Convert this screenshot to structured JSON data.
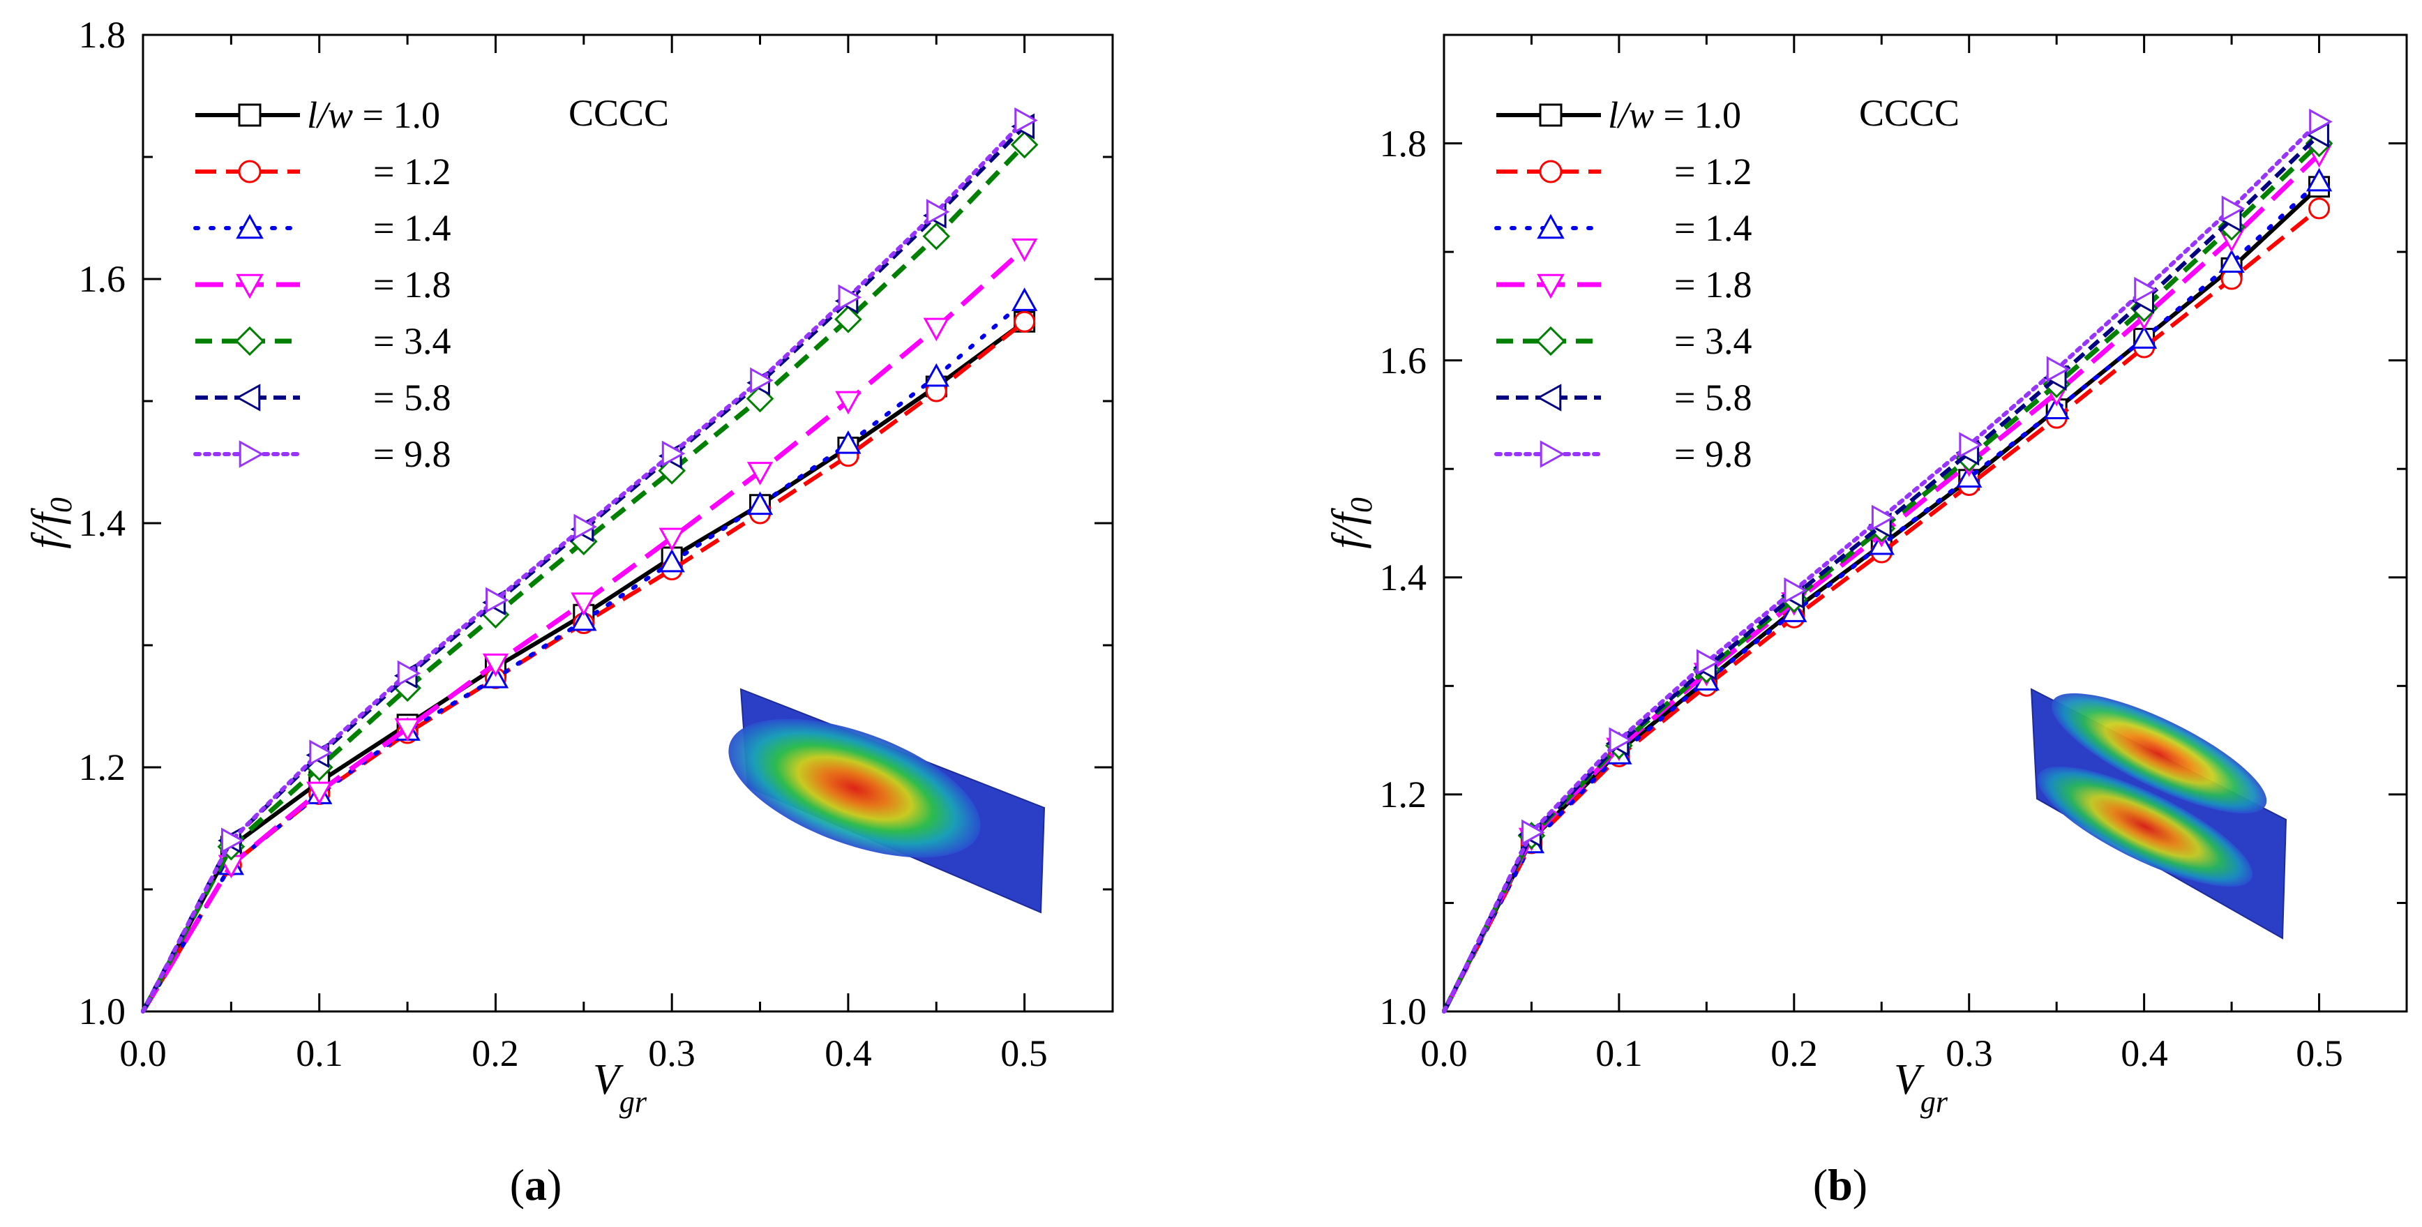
{
  "chart_data": [
    {
      "type": "line",
      "panel": "(a)",
      "panel_letter": "a",
      "annotation": "CCCC",
      "xlabel": "V",
      "xlabel_sub": "gr",
      "ylabel": "f/f",
      "ylabel_sub": "0",
      "xlim": [
        0,
        0.55
      ],
      "ylim": [
        1.0,
        1.8
      ],
      "xticks": [
        "0.0",
        "0.1",
        "0.2",
        "0.3",
        "0.4",
        "0.5"
      ],
      "yticks": [
        "1.0",
        "1.2",
        "1.4",
        "1.6",
        "1.8"
      ],
      "legend_var": "l/w",
      "x": [
        0,
        0.05,
        0.1,
        0.15,
        0.2,
        0.25,
        0.3,
        0.35,
        0.4,
        0.45,
        0.5
      ],
      "series": [
        {
          "name": "= 1.0",
          "color": "#000000",
          "marker": "square",
          "values": [
            1.0,
            1.135,
            1.188,
            1.235,
            1.282,
            1.325,
            1.372,
            1.415,
            1.462,
            1.512,
            1.565
          ]
        },
        {
          "name": "= 1.2",
          "color": "#ff0000",
          "marker": "circle",
          "values": [
            1.0,
            1.12,
            1.178,
            1.228,
            1.273,
            1.318,
            1.362,
            1.408,
            1.455,
            1.508,
            1.565
          ]
        },
        {
          "name": "= 1.4",
          "color": "#0000ee",
          "marker": "triangle-up",
          "values": [
            1.0,
            1.12,
            1.178,
            1.23,
            1.273,
            1.32,
            1.368,
            1.415,
            1.465,
            1.52,
            1.582
          ]
        },
        {
          "name": "= 1.8",
          "color": "#ff00ff",
          "marker": "triangle-down",
          "values": [
            1.0,
            1.12,
            1.18,
            1.232,
            1.285,
            1.335,
            1.388,
            1.442,
            1.5,
            1.56,
            1.625
          ]
        },
        {
          "name": "= 3.4",
          "color": "#008000",
          "marker": "diamond",
          "values": [
            1.0,
            1.135,
            1.2,
            1.265,
            1.325,
            1.385,
            1.443,
            1.502,
            1.567,
            1.635,
            1.71
          ]
        },
        {
          "name": "= 5.8",
          "color": "#000080",
          "marker": "triangle-left",
          "values": [
            1.0,
            1.14,
            1.21,
            1.275,
            1.335,
            1.395,
            1.455,
            1.515,
            1.582,
            1.652,
            1.725
          ]
        },
        {
          "name": "= 9.8",
          "color": "#9933ff",
          "marker": "triangle-right",
          "values": [
            1.0,
            1.14,
            1.212,
            1.277,
            1.337,
            1.397,
            1.457,
            1.517,
            1.585,
            1.655,
            1.73
          ]
        }
      ]
    },
    {
      "type": "line",
      "panel": "(b)",
      "panel_letter": "b",
      "annotation": "CCCC",
      "xlabel": "V",
      "xlabel_sub": "gr",
      "ylabel": "f/f",
      "ylabel_sub": "0",
      "xlim": [
        0,
        0.55
      ],
      "ylim": [
        1.0,
        1.9
      ],
      "xticks": [
        "0.0",
        "0.1",
        "0.2",
        "0.3",
        "0.4",
        "0.5"
      ],
      "yticks": [
        "1.0",
        "1.2",
        "1.4",
        "1.6",
        "1.8"
      ],
      "legend_var": "l/w",
      "x": [
        0,
        0.05,
        0.1,
        0.15,
        0.2,
        0.25,
        0.3,
        0.35,
        0.4,
        0.45,
        0.5
      ],
      "series": [
        {
          "name": "= 1.0",
          "color": "#000000",
          "marker": "square",
          "values": [
            1.0,
            1.158,
            1.24,
            1.305,
            1.37,
            1.43,
            1.49,
            1.555,
            1.62,
            1.685,
            1.76
          ]
        },
        {
          "name": "= 1.2",
          "color": "#ff0000",
          "marker": "circle",
          "values": [
            1.0,
            1.155,
            1.235,
            1.3,
            1.363,
            1.423,
            1.485,
            1.547,
            1.612,
            1.675,
            1.74
          ]
        },
        {
          "name": "= 1.4",
          "color": "#0000ee",
          "marker": "triangle-up",
          "values": [
            1.0,
            1.155,
            1.237,
            1.305,
            1.368,
            1.43,
            1.492,
            1.555,
            1.62,
            1.69,
            1.765
          ]
        },
        {
          "name": "= 1.8",
          "color": "#ff00ff",
          "marker": "triangle-down",
          "values": [
            1.0,
            1.16,
            1.243,
            1.312,
            1.377,
            1.44,
            1.505,
            1.57,
            1.64,
            1.712,
            1.79
          ]
        },
        {
          "name": "= 3.4",
          "color": "#008000",
          "marker": "diamond",
          "values": [
            1.0,
            1.162,
            1.245,
            1.315,
            1.38,
            1.445,
            1.51,
            1.578,
            1.648,
            1.723,
            1.8
          ]
        },
        {
          "name": "= 5.8",
          "color": "#000080",
          "marker": "triangle-left",
          "values": [
            1.0,
            1.163,
            1.247,
            1.317,
            1.383,
            1.448,
            1.515,
            1.584,
            1.655,
            1.73,
            1.808
          ]
        },
        {
          "name": "= 9.8",
          "color": "#9933ff",
          "marker": "triangle-right",
          "values": [
            1.0,
            1.165,
            1.25,
            1.322,
            1.388,
            1.455,
            1.522,
            1.592,
            1.665,
            1.74,
            1.82
          ]
        }
      ]
    }
  ]
}
